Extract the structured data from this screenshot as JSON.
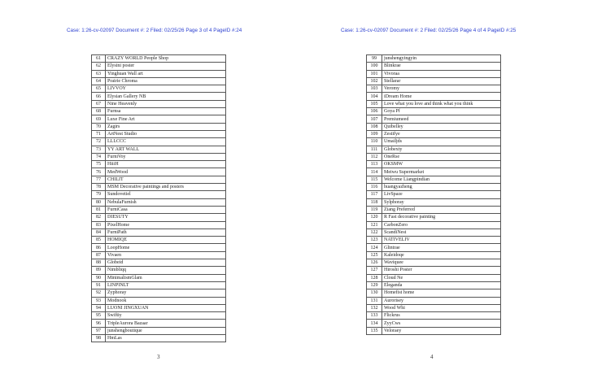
{
  "pages": [
    {
      "header": "Case: 1:26-cv-02097 Document #: 2 Filed: 02/25/26 Page 3 of 4 PageID #:24",
      "page_number": "3",
      "rows": [
        [
          "61",
          "CRAZY WORLD People Shop"
        ],
        [
          "62",
          "Elysini poster"
        ],
        [
          "63",
          "Yinghuan Wall art"
        ],
        [
          "64",
          "Prairie Chroma"
        ],
        [
          "65",
          "LIVVOY"
        ],
        [
          "66",
          "Elysian Gallery NB"
        ],
        [
          "67",
          "Nine Heavenly"
        ],
        [
          "68",
          "Furnsa"
        ],
        [
          "69",
          "Luxe Fine Art"
        ],
        [
          "70",
          "Zagirs"
        ],
        [
          "71",
          "ArtNest Studio"
        ],
        [
          "72",
          "LLLCCC"
        ],
        [
          "73",
          "YY ART WALL"
        ],
        [
          "74",
          "FurniVoy"
        ],
        [
          "75",
          "HiiiH"
        ],
        [
          "76",
          "MedWood"
        ],
        [
          "77",
          "CHILIT"
        ],
        [
          "78",
          "MSM Decorative paintings and posters"
        ],
        [
          "79",
          "Sundovetiel"
        ],
        [
          "80",
          "NebulaFurnish"
        ],
        [
          "81",
          "FurniCasa"
        ],
        [
          "82",
          "DIESUTY"
        ],
        [
          "83",
          "PixelHome"
        ],
        [
          "84",
          "FurniPath"
        ],
        [
          "85",
          "HOMIQE"
        ],
        [
          "86",
          "LoopHome"
        ],
        [
          "87",
          "Vivaen"
        ],
        [
          "88",
          "Globeid"
        ],
        [
          "89",
          "Nimbliqq"
        ],
        [
          "90",
          "MinimalismGlam"
        ],
        [
          "91",
          "LINPINLT"
        ],
        [
          "92",
          "Zyphoray"
        ],
        [
          "93",
          "Modnook"
        ],
        [
          "94",
          "LUONI JINGXUAN"
        ],
        [
          "95",
          "Swiftiy"
        ],
        [
          "96",
          "TripleAurora Bazaar"
        ],
        [
          "97",
          "junshengboutique"
        ],
        [
          "98",
          "HmLas"
        ]
      ]
    },
    {
      "header": "Case: 1:26-cv-02097 Document #: 2 Filed: 02/25/26 Page 4 of 4 PageID #:25",
      "page_number": "4",
      "rows": [
        [
          "99",
          "junshengyingyin"
        ],
        [
          "100",
          "Blinkrae"
        ],
        [
          "101",
          "Vivoraa"
        ],
        [
          "102",
          "Stellarar"
        ],
        [
          "103",
          "Veromy"
        ],
        [
          "104",
          "iDream Home"
        ],
        [
          "105",
          "Love what you love and think what you think"
        ],
        [
          "106",
          "Goya Pf"
        ],
        [
          "107",
          "Premiumeed"
        ],
        [
          "108",
          "Quibelley"
        ],
        [
          "109",
          "Zestifye"
        ],
        [
          "110",
          "Umailjds"
        ],
        [
          "111",
          "Globexty"
        ],
        [
          "112",
          "OneRse"
        ],
        [
          "113",
          "OKSMW"
        ],
        [
          "114",
          "Meiwu Supermarket"
        ],
        [
          "115",
          "Welcome Liangpindian"
        ],
        [
          "116",
          "huangyazheng"
        ],
        [
          "117",
          "LivSpaze"
        ],
        [
          "118",
          "Sylphoray"
        ],
        [
          "119",
          "Ziang Preferred"
        ],
        [
          "120",
          "R Fast decorative painting"
        ],
        [
          "121",
          "CarbonZero"
        ],
        [
          "122",
          "ScandiNest"
        ],
        [
          "123",
          "NATIVELIV"
        ],
        [
          "124",
          "Glintrae"
        ],
        [
          "125",
          "Kaleidoqe"
        ],
        [
          "126",
          "Waviquee"
        ],
        [
          "127",
          "Hiroshi Poster"
        ],
        [
          "128",
          "Cloud Ne"
        ],
        [
          "129",
          "Eleganda"
        ],
        [
          "130",
          "Homefist home"
        ],
        [
          "131",
          "Aurorisey"
        ],
        [
          "132",
          "Wood Whi"
        ],
        [
          "133",
          "Flickrus"
        ],
        [
          "134",
          "ZyyCws"
        ],
        [
          "135",
          "Veloraey"
        ]
      ]
    }
  ]
}
